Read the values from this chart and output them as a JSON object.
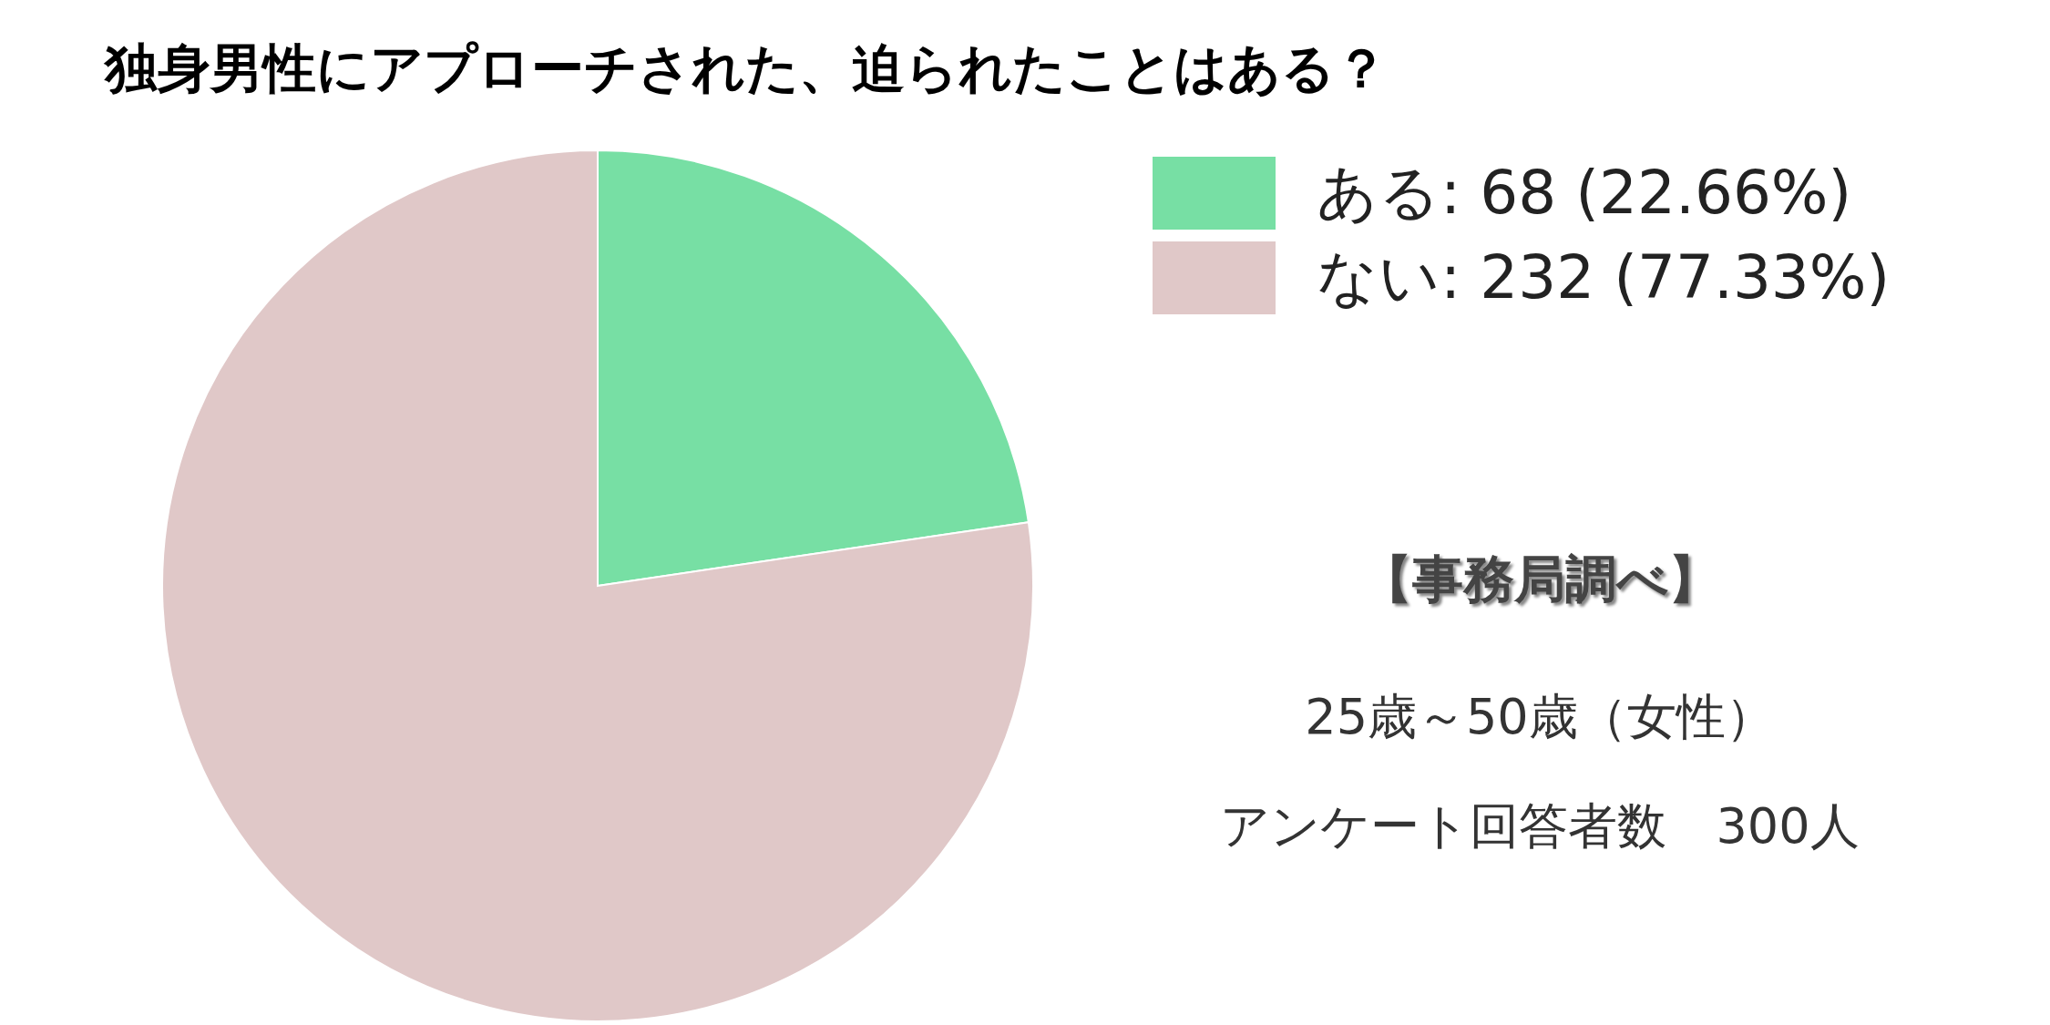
{
  "chart_data": {
    "type": "pie",
    "title": "独身男性にアプローチされた、迫られたことはある？",
    "categories": [
      "ある",
      "ない"
    ],
    "values": [
      68,
      232
    ],
    "value_labels": [
      "68 (22.66%)",
      "232 (77.33%)"
    ],
    "colors": [
      "#77dfa4",
      "#e0c8c8"
    ],
    "legend": "top right",
    "annotations": [
      "【事務局調べ】",
      "25歳～50歳（女性）",
      "アンケート回答者数　300人"
    ]
  }
}
